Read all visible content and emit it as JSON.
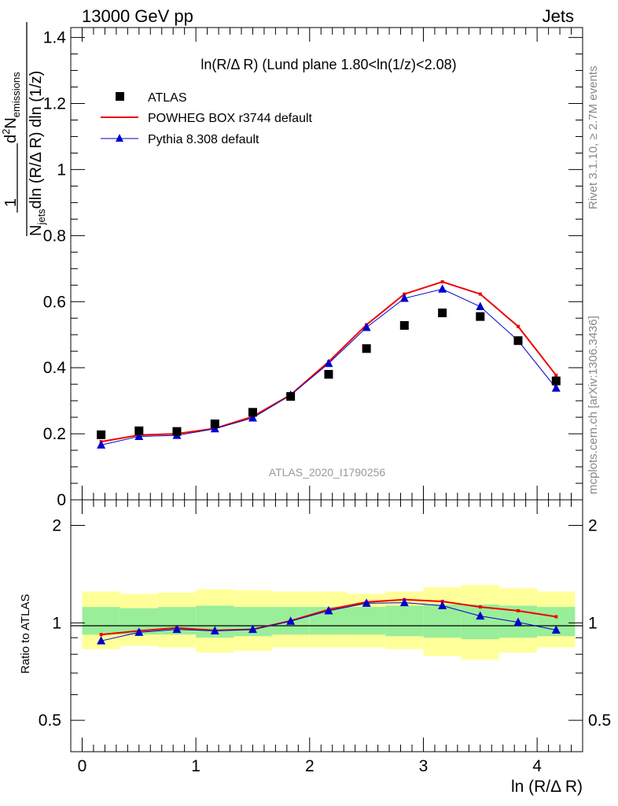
{
  "header": {
    "energy": "13000 GeV pp",
    "process": "Jets"
  },
  "side_labels": {
    "rivet": "Rivet 3.1.10, ≥ 2.7M events",
    "mcplots": "mcplots.cern.ch [arXiv:1306.3436]"
  },
  "watermark": "ATLAS_2020_I1790256",
  "chart_data": [
    {
      "type": "scatter",
      "title": "ln(R/Δ R) (Lund plane 1.80<ln(1/z)<2.08)",
      "ylabel": {
        "frac_num": "1",
        "frac_den_sym": "N",
        "frac_den_sub": "jets",
        "num_d": "d",
        "num_sup": "2",
        "num_N": "N",
        "num_sub": "emissions",
        "den": "dln (R/Δ R) dln (1/z)"
      },
      "xlim": [
        -0.1,
        4.4
      ],
      "ylim": [
        0,
        1.43
      ],
      "yticks": [
        "0",
        "0.2",
        "0.4",
        "0.6",
        "0.8",
        "1",
        "1.2",
        "1.4"
      ],
      "ytick_values": [
        0,
        0.2,
        0.4,
        0.6,
        0.8,
        1.0,
        1.2,
        1.4
      ],
      "x": [
        0.167,
        0.5,
        0.833,
        1.167,
        1.5,
        1.833,
        2.167,
        2.5,
        2.833,
        3.167,
        3.5,
        3.833,
        4.167
      ],
      "series": [
        {
          "name": "ATLAS",
          "color": "#000000",
          "marker": "square",
          "values": [
            0.197,
            0.209,
            0.207,
            0.23,
            0.265,
            0.313,
            0.38,
            0.458,
            0.528,
            0.566,
            0.555,
            0.482,
            0.36
          ]
        },
        {
          "name": "POWHEG BOX r3744 default",
          "color": "#ee0000",
          "marker": "line",
          "values": [
            0.176,
            0.196,
            0.2,
            0.216,
            0.252,
            0.318,
            0.418,
            0.53,
            0.623,
            0.66,
            0.623,
            0.525,
            0.377
          ]
        },
        {
          "name": "Pythia 8.308 default",
          "color": "#0000cc",
          "marker": "triangle",
          "values": [
            0.166,
            0.192,
            0.195,
            0.215,
            0.248,
            0.317,
            0.413,
            0.522,
            0.61,
            0.638,
            0.585,
            0.482,
            0.338
          ]
        }
      ]
    },
    {
      "type": "line",
      "ylabel": "Ratio to ATLAS",
      "xlabel": "ln (R/Δ R)",
      "xlim": [
        -0.1,
        4.4
      ],
      "ylim": [
        0.4,
        2.4
      ],
      "log_y": true,
      "yticks": [
        "0.5",
        "1",
        "2"
      ],
      "ytick_values": [
        0.5,
        1,
        2
      ],
      "xticks": [
        "0",
        "1",
        "2",
        "3",
        "4"
      ],
      "xtick_values": [
        0,
        1,
        2,
        3,
        4
      ],
      "x": [
        0.167,
        0.5,
        0.833,
        1.167,
        1.5,
        1.833,
        2.167,
        2.5,
        2.833,
        3.167,
        3.5,
        3.833,
        4.167
      ],
      "band_yellow": {
        "lo": [
          0.83,
          0.85,
          0.84,
          0.81,
          0.82,
          0.84,
          0.84,
          0.84,
          0.83,
          0.79,
          0.77,
          0.81,
          0.84
        ],
        "hi": [
          1.25,
          1.23,
          1.24,
          1.27,
          1.26,
          1.25,
          1.25,
          1.23,
          1.25,
          1.29,
          1.31,
          1.28,
          1.25
        ]
      },
      "band_green": {
        "lo": [
          0.92,
          0.92,
          0.92,
          0.9,
          0.91,
          0.92,
          0.92,
          0.92,
          0.91,
          0.9,
          0.89,
          0.9,
          0.91
        ],
        "hi": [
          1.12,
          1.11,
          1.12,
          1.13,
          1.12,
          1.12,
          1.12,
          1.12,
          1.13,
          1.14,
          1.14,
          1.13,
          1.12
        ]
      },
      "series": [
        {
          "name": "POWHEG BOX r3744 default",
          "color": "#ee0000",
          "values": [
            0.92,
            0.945,
            0.965,
            0.948,
            0.955,
            1.015,
            1.1,
            1.16,
            1.18,
            1.165,
            1.12,
            1.09,
            1.045
          ]
        },
        {
          "name": "Pythia 8.308 default",
          "color": "#0000cc",
          "values": [
            0.88,
            0.935,
            0.955,
            0.945,
            0.955,
            1.012,
            1.09,
            1.15,
            1.155,
            1.13,
            1.05,
            1.005,
            0.95
          ]
        }
      ]
    }
  ]
}
